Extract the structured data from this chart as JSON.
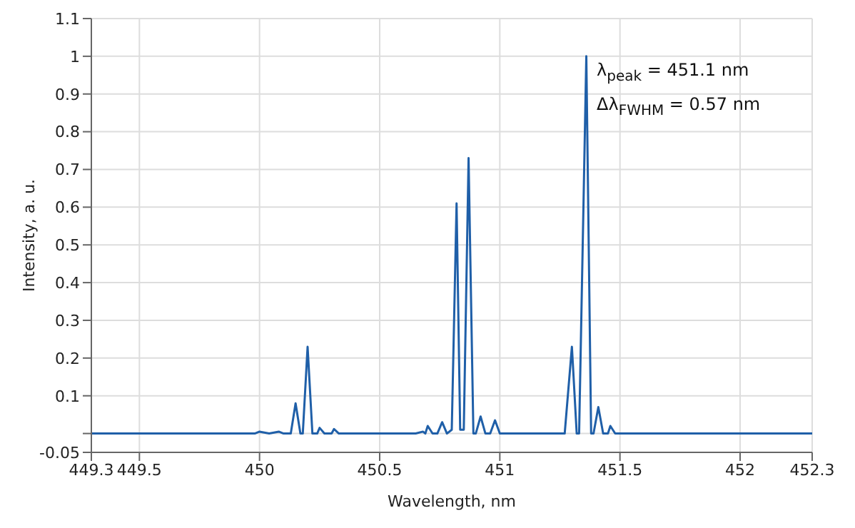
{
  "chart_data": {
    "type": "line",
    "xlabel": "Wavelength, nm",
    "ylabel": "Intensity, a. u.",
    "annotations": [
      "λ$_{peak}$ = 451.1 nm",
      "Δλ$_{FWHM}$ = 0.57 nm"
    ],
    "x": [
      449.3,
      449.8,
      449.98,
      450.0,
      450.04,
      450.08,
      450.1,
      450.13,
      450.15,
      450.17,
      450.18,
      450.2,
      450.22,
      450.24,
      450.25,
      450.27,
      450.3,
      450.31,
      450.33,
      450.6,
      450.65,
      450.68,
      450.69,
      450.7,
      450.72,
      450.74,
      450.76,
      450.78,
      450.8,
      450.82,
      450.835,
      450.85,
      450.87,
      450.89,
      450.9,
      450.92,
      450.94,
      450.96,
      450.98,
      451.0,
      451.27,
      451.3,
      451.32,
      451.33,
      451.36,
      451.38,
      451.39,
      451.41,
      451.43,
      451.45,
      451.46,
      451.48,
      452.3
    ],
    "series": [
      {
        "color": "#1f5fa8",
        "values": [
          0,
          0,
          0,
          0.005,
          0,
          0.005,
          0,
          0,
          0.08,
          0,
          0,
          0.23,
          0,
          0,
          0.015,
          0,
          0,
          0.012,
          0,
          0,
          0,
          0.005,
          0,
          0.02,
          0,
          0,
          0.03,
          0,
          0.01,
          0.61,
          0.01,
          0.01,
          0.73,
          0,
          0,
          0.045,
          0,
          0,
          0.035,
          0,
          0,
          0.23,
          0,
          0,
          1.0,
          0,
          0,
          0.07,
          0,
          0,
          0.02,
          0,
          0
        ]
      }
    ],
    "xlim": [
      449.3,
      452.3
    ],
    "xticks": [
      449.3,
      449.5,
      450,
      450.5,
      451,
      451.5,
      452,
      452.3
    ],
    "ylim": [
      -0.05,
      1.1
    ],
    "yticks": [
      -0.05,
      {
        "value": 0,
        "label": null
      },
      0.1,
      0.2,
      0.3,
      0.4,
      0.5,
      0.6,
      0.7,
      0.8,
      0.9,
      1,
      1.1
    ],
    "grid": true,
    "marker": "none",
    "line_style": "solid"
  }
}
